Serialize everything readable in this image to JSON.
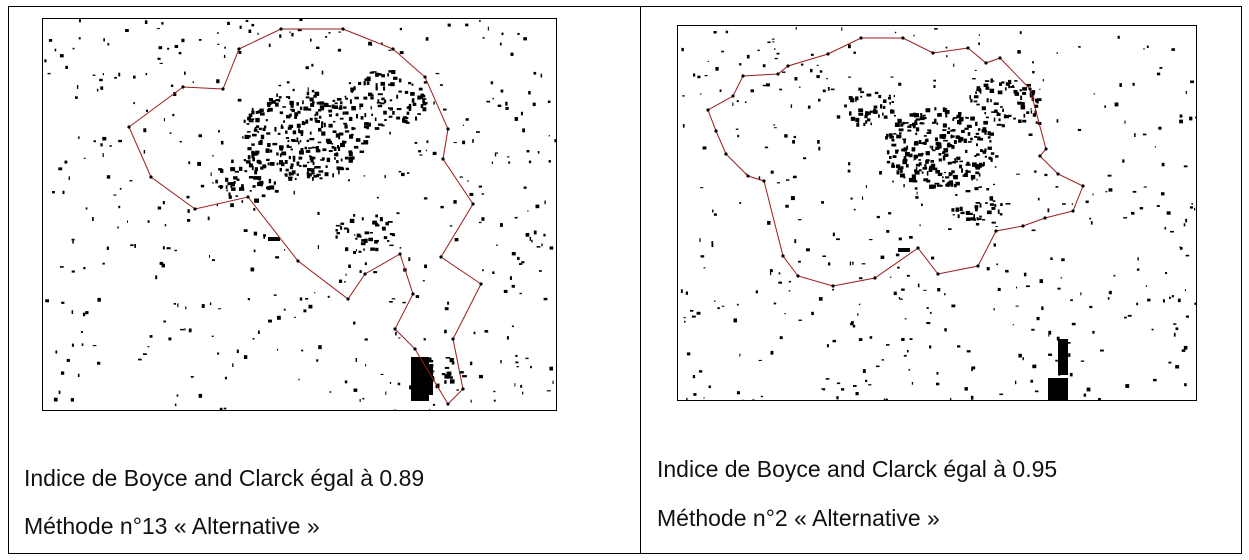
{
  "left_panel": {
    "index_line": "Indice de Boyce and Clarck égal à 0.89",
    "method_line": "Méthode n°13 « Alternative »"
  },
  "right_panel": {
    "index_line": "Indice de Boyce and Clarck égal à 0.95",
    "method_line": "Méthode n°2 « Alternative »"
  },
  "colors": {
    "boundary": "#9b1b1b",
    "building": "#000000",
    "background": "#ffffff"
  }
}
